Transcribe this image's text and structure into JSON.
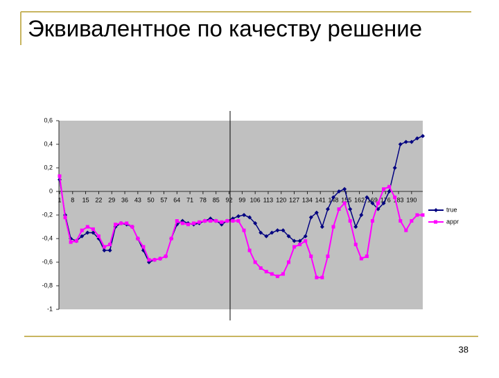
{
  "title": "Эквивалентное по качеству решение",
  "page_number": "38",
  "chart_data": {
    "type": "line",
    "x": [
      1,
      4,
      7,
      10,
      13,
      16,
      19,
      22,
      25,
      28,
      31,
      34,
      37,
      40,
      43,
      46,
      49,
      52,
      55,
      58,
      61,
      64,
      67,
      70,
      73,
      76,
      79,
      82,
      85,
      88,
      91,
      94,
      97,
      100,
      103,
      106,
      109,
      112,
      115,
      118,
      121,
      124,
      127,
      130,
      133,
      136,
      139,
      142,
      145,
      148,
      151,
      154,
      157,
      160,
      163,
      166,
      169,
      172,
      175,
      178,
      181,
      184,
      187,
      190,
      193,
      196
    ],
    "series": [
      {
        "name": "true",
        "color": "#000080",
        "marker": "diamond",
        "values": [
          0.1,
          -0.2,
          -0.4,
          -0.42,
          -0.38,
          -0.35,
          -0.35,
          -0.4,
          -0.5,
          -0.5,
          -0.3,
          -0.27,
          -0.28,
          -0.3,
          -0.4,
          -0.5,
          -0.6,
          -0.58,
          -0.57,
          -0.55,
          -0.4,
          -0.28,
          -0.25,
          -0.27,
          -0.28,
          -0.27,
          -0.25,
          -0.23,
          -0.25,
          -0.28,
          -0.25,
          -0.23,
          -0.21,
          -0.2,
          -0.22,
          -0.27,
          -0.35,
          -0.38,
          -0.35,
          -0.33,
          -0.33,
          -0.38,
          -0.42,
          -0.42,
          -0.38,
          -0.22,
          -0.18,
          -0.3,
          -0.15,
          -0.05,
          0,
          0.02,
          -0.15,
          -0.3,
          -0.2,
          -0.05,
          -0.1,
          -0.15,
          -0.1,
          0,
          0.2,
          0.4,
          0.42,
          0.42,
          0.45,
          0.47
        ]
      },
      {
        "name": "appr",
        "color": "#ff00ff",
        "marker": "square",
        "values": [
          0.13,
          -0.22,
          -0.43,
          -0.42,
          -0.33,
          -0.3,
          -0.32,
          -0.38,
          -0.47,
          -0.45,
          -0.28,
          -0.27,
          -0.27,
          -0.3,
          -0.4,
          -0.47,
          -0.58,
          -0.58,
          -0.57,
          -0.55,
          -0.4,
          -0.25,
          -0.27,
          -0.28,
          -0.27,
          -0.26,
          -0.25,
          -0.25,
          -0.25,
          -0.26,
          -0.25,
          -0.25,
          -0.25,
          -0.33,
          -0.5,
          -0.6,
          -0.65,
          -0.68,
          -0.7,
          -0.72,
          -0.7,
          -0.6,
          -0.47,
          -0.45,
          -0.42,
          -0.55,
          -0.73,
          -0.73,
          -0.55,
          -0.3,
          -0.15,
          -0.1,
          -0.25,
          -0.45,
          -0.57,
          -0.55,
          -0.25,
          -0.1,
          0.02,
          0.04,
          -0.05,
          -0.25,
          -0.33,
          -0.25,
          -0.2,
          -0.2
        ]
      }
    ],
    "xlim": [
      1,
      196
    ],
    "xticks": [
      1,
      8,
      15,
      22,
      29,
      36,
      43,
      50,
      57,
      64,
      71,
      78,
      85,
      92,
      99,
      106,
      113,
      120,
      127,
      134,
      141,
      148,
      155,
      162,
      169,
      176,
      183,
      190
    ],
    "ylim": [
      -1,
      0.6
    ],
    "yticks": [
      {
        "value": 0.6,
        "label": "0,6"
      },
      {
        "value": 0.4,
        "label": "0,4"
      },
      {
        "value": 0.2,
        "label": "0,2"
      },
      0,
      {
        "value": -0.2,
        "label": "-0,2"
      },
      {
        "value": -0.4,
        "label": "-0,4"
      },
      {
        "value": -0.6,
        "label": "-0,6"
      },
      {
        "value": -0.8,
        "label": "-0,8"
      },
      -1
    ],
    "legend": "right"
  }
}
